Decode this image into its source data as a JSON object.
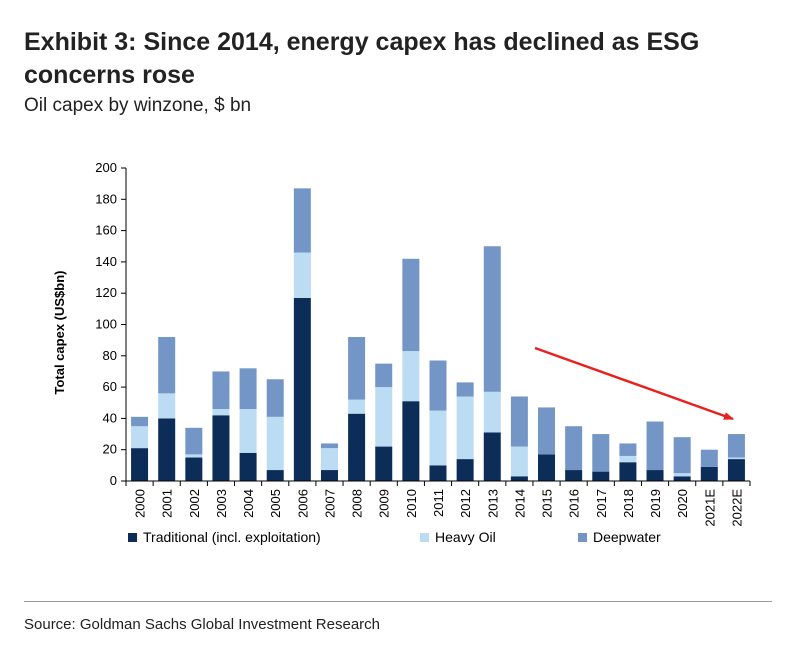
{
  "header": {
    "title": "Exhibit 3: Since 2014, energy capex has declined as ESG concerns rose",
    "subtitle": "Oil capex by winzone, $ bn"
  },
  "footer": {
    "source": "Source: Goldman Sachs Global Investment Research"
  },
  "colors": {
    "traditional": "#0c2d57",
    "heavy_oil": "#bcdcf4",
    "deepwater": "#7396c6",
    "arrow": "#e8211f",
    "axis": "#000000"
  },
  "chart_data": {
    "type": "bar",
    "stacked": true,
    "title": "",
    "xlabel": "",
    "ylabel": "Total capex (US$bn)",
    "ylim": [
      0,
      200
    ],
    "yticks": [
      0,
      20,
      40,
      60,
      80,
      100,
      120,
      140,
      160,
      180,
      200
    ],
    "grid": false,
    "legend_position": "bottom",
    "categories": [
      "2000",
      "2001",
      "2002",
      "2003",
      "2004",
      "2005",
      "2006",
      "2007",
      "2008",
      "2009",
      "2010",
      "2011",
      "2012",
      "2013",
      "2014",
      "2015",
      "2016",
      "2017",
      "2018",
      "2019",
      "2020",
      "2021E",
      "2022E"
    ],
    "series": [
      {
        "name": "Traditional (incl. exploitation)",
        "color_key": "traditional",
        "values": [
          21,
          40,
          15,
          42,
          18,
          7,
          117,
          7,
          43,
          22,
          51,
          10,
          14,
          31,
          3,
          17,
          7,
          6,
          12,
          7,
          3,
          9,
          14
        ]
      },
      {
        "name": "Heavy Oil",
        "color_key": "heavy_oil",
        "values": [
          14,
          16,
          2,
          4,
          28,
          34,
          29,
          14,
          9,
          38,
          32,
          35,
          40,
          26,
          19,
          0,
          0,
          0,
          4,
          0,
          2,
          0,
          1
        ]
      },
      {
        "name": "Deepwater",
        "color_key": "deepwater",
        "values": [
          6,
          36,
          17,
          24,
          26,
          24,
          41,
          3,
          40,
          15,
          59,
          32,
          9,
          93,
          32,
          30,
          28,
          24,
          8,
          31,
          23,
          11,
          15
        ]
      }
    ],
    "annotation": {
      "type": "arrow",
      "from_category": "2015",
      "to_category": "2022E",
      "meaning": "declining trend"
    }
  }
}
